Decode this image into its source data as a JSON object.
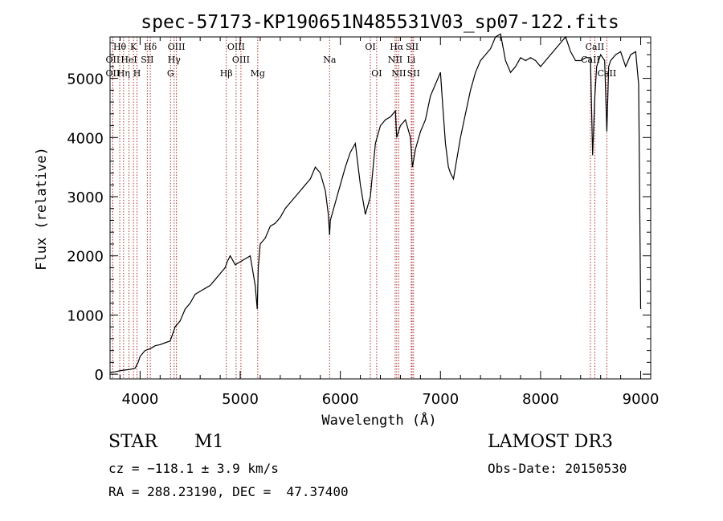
{
  "chart_data": {
    "type": "line",
    "title": "spec-57173-KP190651N485531V03_sp07-122.fits",
    "xlabel": "Wavelength (Å)",
    "ylabel": "Flux (relative)",
    "xlim": [
      3700,
      9100
    ],
    "ylim": [
      -80,
      5700
    ],
    "xticks": [
      4000,
      5000,
      6000,
      7000,
      8000,
      9000
    ],
    "yticks": [
      0,
      1000,
      2000,
      3000,
      4000,
      5000
    ],
    "series": [
      {
        "name": "spectrum",
        "x": [
          3700,
          3750,
          3800,
          3850,
          3900,
          3950,
          3980,
          4000,
          4050,
          4100,
          4150,
          4200,
          4250,
          4300,
          4330,
          4350,
          4400,
          4450,
          4500,
          4550,
          4600,
          4650,
          4700,
          4750,
          4800,
          4850,
          4870,
          4900,
          4950,
          5000,
          5050,
          5100,
          5150,
          5170,
          5180,
          5200,
          5250,
          5300,
          5350,
          5400,
          5450,
          5500,
          5550,
          5600,
          5650,
          5700,
          5750,
          5800,
          5850,
          5880,
          5893,
          5900,
          5950,
          6000,
          6050,
          6100,
          6150,
          6200,
          6250,
          6300,
          6350,
          6400,
          6450,
          6500,
          6550,
          6563,
          6600,
          6650,
          6700,
          6720,
          6750,
          6800,
          6850,
          6900,
          6950,
          7000,
          7020,
          7050,
          7080,
          7100,
          7130,
          7160,
          7200,
          7250,
          7300,
          7350,
          7400,
          7450,
          7500,
          7550,
          7600,
          7650,
          7700,
          7750,
          7800,
          7850,
          7900,
          7950,
          8000,
          8050,
          8100,
          8150,
          8200,
          8250,
          8300,
          8350,
          8400,
          8450,
          8498,
          8520,
          8542,
          8560,
          8600,
          8640,
          8662,
          8680,
          8700,
          8750,
          8800,
          8850,
          8900,
          8950,
          8980,
          9000
        ],
        "y": [
          30,
          40,
          60,
          70,
          80,
          100,
          200,
          300,
          400,
          430,
          480,
          500,
          530,
          560,
          700,
          800,
          900,
          1100,
          1200,
          1350,
          1400,
          1450,
          1500,
          1600,
          1700,
          1800,
          1900,
          2000,
          1850,
          1900,
          1950,
          2000,
          1500,
          1100,
          1800,
          2200,
          2300,
          2500,
          2550,
          2650,
          2800,
          2900,
          3000,
          3100,
          3200,
          3300,
          3500,
          3400,
          3100,
          2700,
          2350,
          2600,
          2900,
          3200,
          3500,
          3750,
          3900,
          3200,
          2700,
          3000,
          3900,
          4200,
          4300,
          4350,
          4450,
          4000,
          4200,
          4300,
          4000,
          3500,
          3800,
          4100,
          4300,
          4700,
          4900,
          5100,
          4600,
          3900,
          3500,
          3400,
          3300,
          3600,
          4000,
          4400,
          4800,
          5100,
          5300,
          5400,
          5500,
          5700,
          5750,
          5300,
          5100,
          5200,
          5350,
          5300,
          5350,
          5300,
          5200,
          5300,
          5400,
          5500,
          5600,
          5700,
          5450,
          5300,
          5300,
          5350,
          5350,
          3700,
          4700,
          5200,
          5400,
          5300,
          4100,
          5200,
          5300,
          5400,
          5450,
          5200,
          5400,
          5450,
          4900,
          1100
        ]
      }
    ],
    "lines": [
      {
        "name": "Hθ",
        "x": 3797,
        "row": 0
      },
      {
        "name": "K",
        "x": 3934,
        "row": 0
      },
      {
        "name": "Hδ",
        "x": 4102,
        "row": 0
      },
      {
        "name": "OII",
        "x": 3727,
        "row": 1
      },
      {
        "name": "HeI",
        "x": 3889,
        "row": 1
      },
      {
        "name": "SII",
        "x": 4072,
        "row": 1
      },
      {
        "name": "OIII",
        "x": 4363,
        "row": 0
      },
      {
        "name": "Hγ",
        "x": 4340,
        "row": 1
      },
      {
        "name": "G",
        "x": 4304,
        "row": 2
      },
      {
        "name": "OII",
        "x": 3727,
        "row": 2
      },
      {
        "name": "Hη",
        "x": 3835,
        "row": 2
      },
      {
        "name": "H",
        "x": 3969,
        "row": 2
      },
      {
        "name": "OIII",
        "x": 4959,
        "row": 0
      },
      {
        "name": "OIII",
        "x": 5007,
        "row": 1
      },
      {
        "name": "Hβ",
        "x": 4861,
        "row": 2
      },
      {
        "name": "Mg",
        "x": 5175,
        "row": 2
      },
      {
        "name": "Na",
        "x": 5893,
        "row": 1
      },
      {
        "name": "OI",
        "x": 6300,
        "row": 0
      },
      {
        "name": "OI",
        "x": 6363,
        "row": 2
      },
      {
        "name": "Hα",
        "x": 6563,
        "row": 0
      },
      {
        "name": "SII",
        "x": 6717,
        "row": 0
      },
      {
        "name": "NII",
        "x": 6548,
        "row": 1
      },
      {
        "name": "Li",
        "x": 6708,
        "row": 1
      },
      {
        "name": "NII",
        "x": 6584,
        "row": 2
      },
      {
        "name": "SII",
        "x": 6731,
        "row": 2
      },
      {
        "name": "CaII",
        "x": 8542,
        "row": 0
      },
      {
        "name": "CaII",
        "x": 8498,
        "row": 1
      },
      {
        "name": "CaII",
        "x": 8662,
        "row": 2
      }
    ]
  },
  "info": {
    "object_class": "STAR",
    "subclass": "M1",
    "survey": "LAMOST DR3",
    "cz": "cz = −118.1 ± 3.9 km/s",
    "obs_date": "Obs-Date: 20150530",
    "coords": "RA = 288.23190, DEC =  47.37400"
  },
  "colors": {
    "line_marker": "#b03030",
    "axis": "#000000",
    "spectrum": "#000000"
  }
}
